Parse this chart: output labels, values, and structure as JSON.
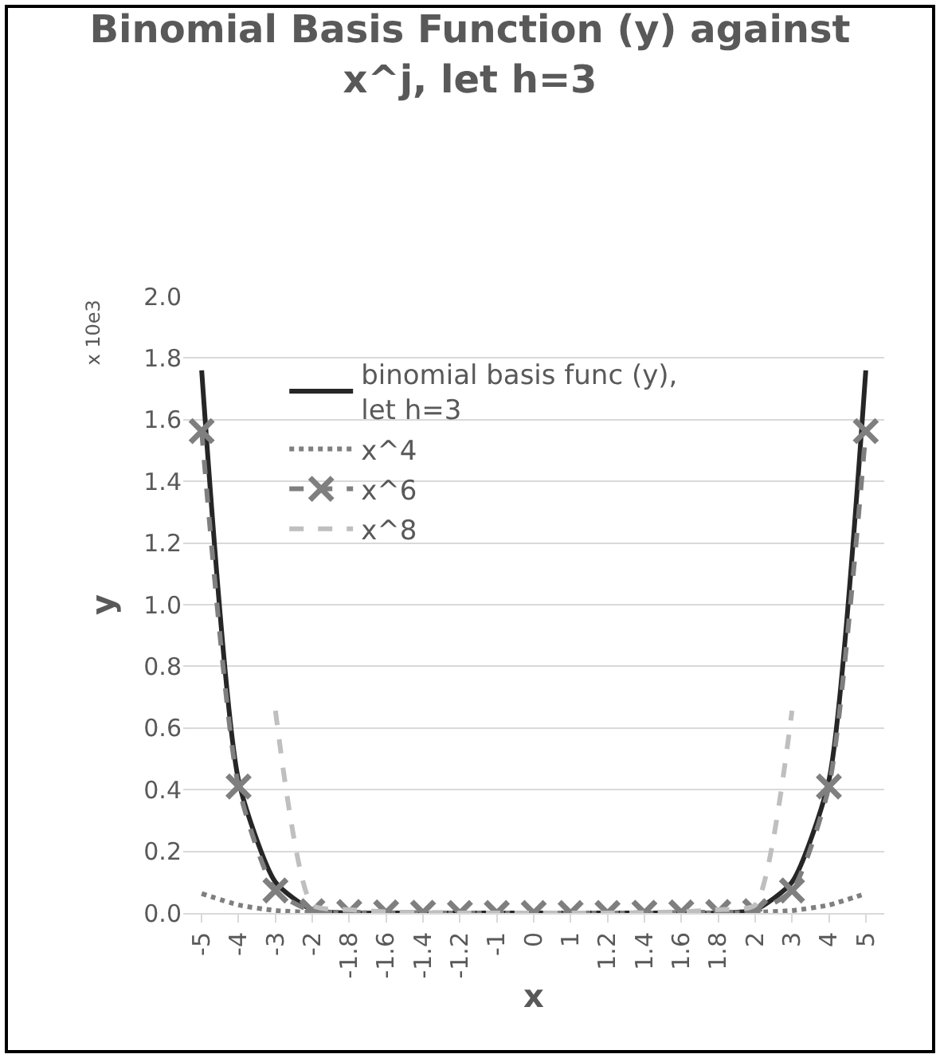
{
  "chart_data": {
    "type": "line",
    "title": "Binomial Basis Function (y) against x^j, let h=3",
    "xlabel": "x",
    "ylabel": "y",
    "annotations": [
      "x 10e3"
    ],
    "categories": [
      "-5",
      "-4",
      "-3",
      "-2",
      "-1.8",
      "-1.6",
      "-1.4",
      "-1.2",
      "-1",
      "0",
      "1",
      "1.2",
      "1.4",
      "1.6",
      "1.8",
      "2",
      "3",
      "4",
      "5"
    ],
    "series": [
      {
        "name": "binomial basis func (y), let h=3",
        "color": "#262626",
        "line_style": "solid",
        "marker": "none",
        "values": [
          1.76,
          0.43,
          0.1,
          0.01,
          0,
          0,
          0,
          0,
          0,
          0,
          0,
          0,
          0,
          0,
          0,
          0.01,
          0.1,
          0.43,
          1.76
        ]
      },
      {
        "name": "x^4",
        "color": "#7f7f7f",
        "line_style": "dotted",
        "marker": "none",
        "values": [
          0.063,
          0.026,
          0.008,
          0.002,
          0.001,
          0.001,
          0,
          0,
          0,
          0,
          0,
          0,
          0,
          0.001,
          0.001,
          0.002,
          0.008,
          0.026,
          0.063
        ]
      },
      {
        "name": "x^6",
        "color": "#7f7f7f",
        "line_style": "dashed",
        "marker": "cross",
        "values": [
          1.563,
          0.41,
          0.073,
          0.006,
          0.003,
          0.002,
          0.001,
          0,
          0,
          0,
          0,
          0,
          0.001,
          0.002,
          0.003,
          0.006,
          0.073,
          0.41,
          1.563
        ]
      },
      {
        "name": "x^8",
        "color": "#bfbfbf",
        "line_style": "dashed",
        "marker": "none",
        "values": [
          null,
          null,
          0.656,
          0.026,
          0.011,
          0.004,
          0.001,
          0,
          0,
          0,
          0,
          0,
          0.001,
          0.004,
          0.011,
          0.026,
          0.656,
          null,
          null
        ]
      }
    ],
    "ylim": [
      0,
      2.0
    ],
    "yticks": [
      {
        "value": 0,
        "label": "0.0"
      },
      0.2,
      0.4,
      0.6,
      0.8,
      {
        "value": 1,
        "label": "1.0"
      },
      1.2,
      1.4,
      1.6,
      1.8,
      {
        "value": 2,
        "label": "2.0"
      }
    ],
    "grid": "y",
    "legend": "top"
  }
}
